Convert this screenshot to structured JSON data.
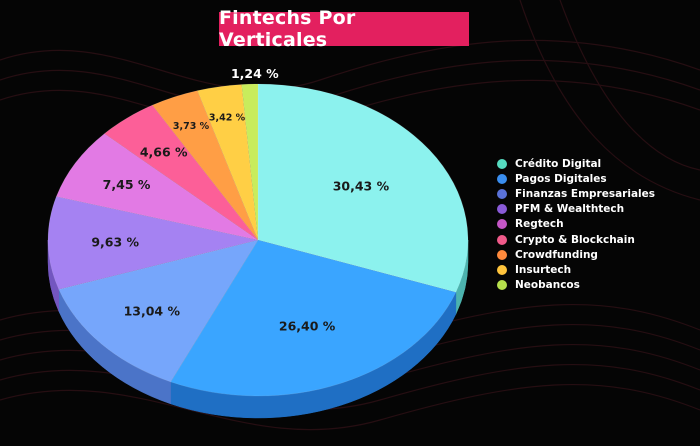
{
  "chart_data": {
    "type": "pie",
    "title": "Fintechs Por Verticales",
    "legend_position": "right",
    "slices": [
      {
        "name": "Crédito Digital",
        "value": 30.43,
        "label": "30,43 %",
        "color": "#8cf2ee",
        "side": "#4cb3ae"
      },
      {
        "name": "Pagos Digitales",
        "value": 26.4,
        "label": "26,40 %",
        "color": "#3aa5ff",
        "side": "#1f6fc4"
      },
      {
        "name": "Finanzas Empresariales",
        "value": 13.04,
        "label": "13,04 %",
        "color": "#76a6fb",
        "side": "#4b74c8"
      },
      {
        "name": "PFM & Wealthtech",
        "value": 9.63,
        "label": "9,63 %",
        "color": "#a582f2",
        "side": "#7356c0"
      },
      {
        "name": "Regtech",
        "value": 7.45,
        "label": "7,45 %",
        "color": "#e27ae4",
        "side": "#a84eab"
      },
      {
        "name": "Crypto & Blockchain",
        "value": 4.66,
        "label": "4,66 %",
        "color": "#fc5f98",
        "side": "#c23a6c"
      },
      {
        "name": "Crowdfunding",
        "value": 3.73,
        "label": "3,73 %",
        "color": "#ff9e45",
        "side": "#c4722a"
      },
      {
        "name": "Insurtech",
        "value": 3.42,
        "label": "3,42 %",
        "color": "#ffcf45",
        "side": "#c49c2a"
      },
      {
        "name": "Neobancos",
        "value": 1.24,
        "label": "1,24 %",
        "color": "#c8ec5c",
        "side": "#95b43c"
      }
    ]
  },
  "legend_dot_colors": [
    "#56dbc0",
    "#3a8ef0",
    "#5a72d8",
    "#8a5bd8",
    "#c456c6",
    "#f05a8a",
    "#ff8a3c",
    "#ffc43c",
    "#b6e04c"
  ]
}
